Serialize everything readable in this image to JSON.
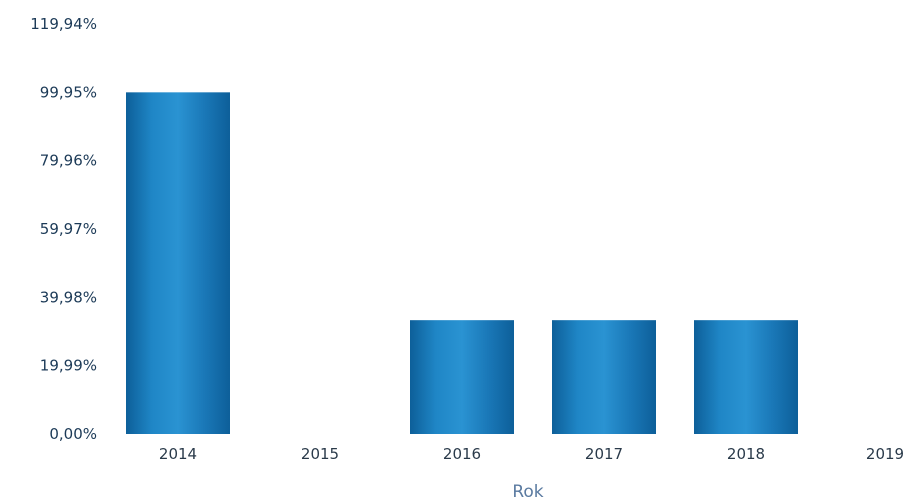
{
  "chart_data": {
    "type": "bar",
    "categories": [
      "2014",
      "2015",
      "2016",
      "2017",
      "2018",
      "2019"
    ],
    "values": [
      99.95,
      0,
      33.3,
      33.3,
      33.3,
      0
    ],
    "y_tick_labels": [
      "0,00%",
      "19,99%",
      "39,98%",
      "59,97%",
      "79,96%",
      "99,95%",
      "119,94%"
    ],
    "y_tick_values": [
      0,
      19.99,
      39.98,
      59.97,
      79.96,
      99.95,
      119.94
    ],
    "ylim": [
      0,
      119.94
    ],
    "xlabel": "Rok",
    "ylabel": "",
    "title": "",
    "grid": false,
    "bar_color": "#1f7fc0",
    "bar_color_dark": "#0d5f99"
  }
}
